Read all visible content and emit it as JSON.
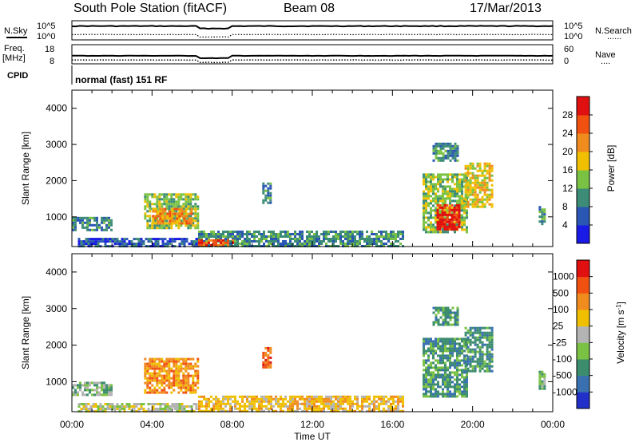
{
  "header": {
    "title": "South Pole Station (fitACF)",
    "beam": "Beam 08",
    "date": "17/Mar/2013"
  },
  "chart_data": {
    "type": "heatmap",
    "x_axis": {
      "label": "Time UT",
      "ticks": [
        "00:00",
        "04:00",
        "08:00",
        "12:00",
        "16:00",
        "20:00",
        "00:00"
      ],
      "range_hours": [
        0,
        24
      ]
    },
    "top_strip": {
      "nsky_label": "N.Sky",
      "nsearch_label": "N.Search",
      "nsearch_style": "......",
      "tick_high": "10^5",
      "tick_low": "10^0",
      "nsky_level_log": 3.6,
      "nsearch_level_log": 1.4
    },
    "freq_strip": {
      "freq_label": "Freq.",
      "freq_unit": "[MHz]",
      "nave_label": "Nave",
      "nave_style": "....",
      "left_ticks": [
        "18",
        "8"
      ],
      "right_ticks": [
        "60",
        "0"
      ],
      "freq_level_mhz": 12.2,
      "nave_level": 24
    },
    "cpid": {
      "label": "CPID",
      "value": "normal (fast) 151 RF"
    },
    "panels": [
      {
        "id": "power",
        "ylabel": "Slant Range [km]",
        "yticks": [
          1000,
          2000,
          3000,
          4000
        ],
        "yrange": [
          180,
          4500
        ],
        "colorbar": {
          "label": "Power [dB]",
          "ticks": [
            "4",
            "8",
            "12",
            "16",
            "20",
            "24",
            "28"
          ],
          "colors": [
            "#1a1ae6",
            "#2a56b4",
            "#3c8c78",
            "#7ac243",
            "#f0c000",
            "#f08c1e",
            "#f05010",
            "#e01010"
          ]
        },
        "regions": [
          {
            "t0": 0.0,
            "t1": 2.0,
            "r0": 650,
            "r1": 1000,
            "level": 2
          },
          {
            "t0": 0.3,
            "t1": 6.3,
            "r0": 190,
            "r1": 420,
            "level": 1
          },
          {
            "t0": 3.6,
            "t1": 6.3,
            "r0": 720,
            "r1": 1650,
            "level": 3
          },
          {
            "t0": 4.0,
            "t1": 6.0,
            "r0": 850,
            "r1": 1250,
            "level": 5
          },
          {
            "t0": 6.3,
            "t1": 16.5,
            "r0": 190,
            "r1": 620,
            "level": 2
          },
          {
            "t0": 6.3,
            "t1": 8.0,
            "r0": 190,
            "r1": 380,
            "level": 6
          },
          {
            "t0": 9.5,
            "t1": 9.9,
            "r0": 1400,
            "r1": 1950,
            "level": 2
          },
          {
            "t0": 17.5,
            "t1": 19.7,
            "r0": 600,
            "r1": 2200,
            "level": 3
          },
          {
            "t0": 18.2,
            "t1": 19.3,
            "r0": 650,
            "r1": 1350,
            "level": 7
          },
          {
            "t0": 19.6,
            "t1": 21.0,
            "r0": 1300,
            "r1": 2500,
            "level": 4
          },
          {
            "t0": 18.0,
            "t1": 19.2,
            "r0": 2550,
            "r1": 3050,
            "level": 2
          },
          {
            "t0": 23.3,
            "t1": 23.6,
            "r0": 800,
            "r1": 1300,
            "level": 2
          }
        ]
      },
      {
        "id": "velocity",
        "ylabel": "Slant Range [km]",
        "yticks": [
          1000,
          2000,
          3000,
          4000
        ],
        "yrange": [
          180,
          4500
        ],
        "colorbar": {
          "label": "Velocity [m s",
          "label_sup": "-1",
          "label_end": "]",
          "ticks": [
            "1000",
            "500",
            "100",
            "25",
            "-25",
            "-100",
            "-500",
            "-1000"
          ],
          "colors": [
            "#2030c8",
            "#3870b0",
            "#3c8c6e",
            "#7ac243",
            "#b4b4b4",
            "#f0c000",
            "#f08c1e",
            "#f05010",
            "#e01010"
          ]
        },
        "regions": [
          {
            "t0": 0.0,
            "t1": 2.0,
            "r0": 650,
            "r1": 1000,
            "level": 3
          },
          {
            "t0": 0.3,
            "t1": 6.3,
            "r0": 190,
            "r1": 420,
            "level": 4
          },
          {
            "t0": 3.6,
            "t1": 6.3,
            "r0": 720,
            "r1": 1650,
            "level": 6
          },
          {
            "t0": 6.3,
            "t1": 16.5,
            "r0": 190,
            "r1": 620,
            "level": 5
          },
          {
            "t0": 9.5,
            "t1": 9.9,
            "r0": 1400,
            "r1": 1950,
            "level": 7
          },
          {
            "t0": 17.5,
            "t1": 19.7,
            "r0": 600,
            "r1": 2200,
            "level": 2
          },
          {
            "t0": 19.6,
            "t1": 21.0,
            "r0": 1300,
            "r1": 2500,
            "level": 2
          },
          {
            "t0": 18.0,
            "t1": 19.2,
            "r0": 2550,
            "r1": 3050,
            "level": 2
          },
          {
            "t0": 23.3,
            "t1": 23.6,
            "r0": 800,
            "r1": 1300,
            "level": 3
          }
        ]
      }
    ]
  }
}
